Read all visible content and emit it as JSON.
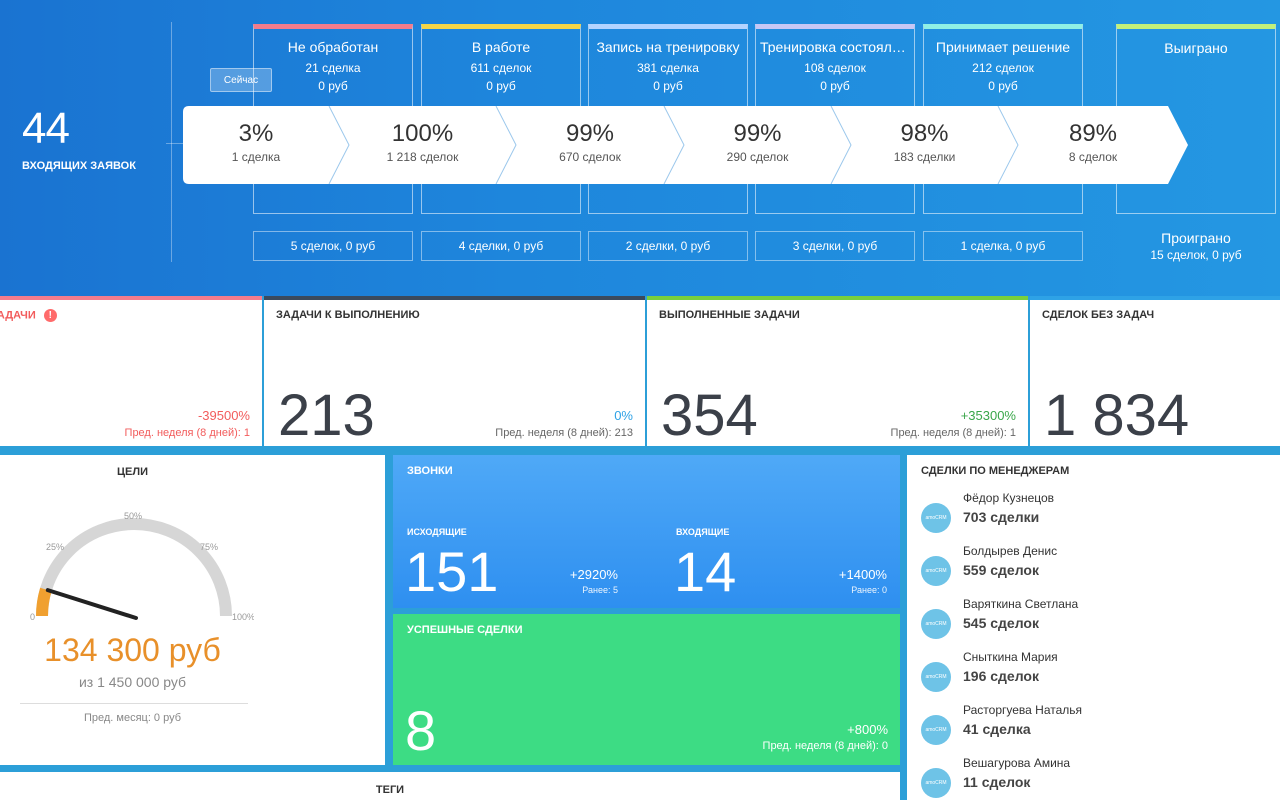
{
  "pipeline": {
    "inbox_count": "44",
    "inbox_label": "ВХОДЯЩИХ ЗАЯВОК",
    "now_label": "Сейчас",
    "stages": [
      {
        "name": "Не обработан",
        "count": "21 сделка",
        "sum": "0 руб",
        "pct": "3%",
        "deals": "1 сделка",
        "footer": "5 сделок, 0 руб",
        "color": "#f37c8c"
      },
      {
        "name": "В работе",
        "count": "611 сделок",
        "sum": "0 руб",
        "pct": "100%",
        "deals": "1 218 сделок",
        "footer": "4 сделки, 0 руб",
        "color": "#f5d547"
      },
      {
        "name": "Запись на тренировку",
        "count": "381 сделка",
        "sum": "0 руб",
        "pct": "99%",
        "deals": "670 сделок",
        "footer": "2 сделки, 0 руб",
        "color": "#b3d3ff"
      },
      {
        "name": "Тренировка состоялась",
        "count": "108 сделок",
        "sum": "0 руб",
        "pct": "99%",
        "deals": "290 сделок",
        "footer": "3 сделки, 0 руб",
        "color": "#c6c7f5"
      },
      {
        "name": "Принимает решение",
        "count": "212 сделок",
        "sum": "0 руб",
        "pct": "98%",
        "deals": "183 сделки",
        "footer": "1 сделка, 0 руб",
        "color": "#8ff0e5"
      }
    ],
    "won": {
      "name": "Выиграно",
      "pct": "89%",
      "deals": "8 сделок",
      "color": "#c2f07a"
    },
    "lost": {
      "name": "Проиграно",
      "sub": "15 сделок, 0 руб"
    }
  },
  "stats": [
    {
      "title": "ЗАДАЧИ",
      "value": "",
      "change": "-39500%",
      "prev": "Пред. неделя (8 дней): 1",
      "color": "#f37c8c",
      "change_color": "#f25c5c"
    },
    {
      "title": "ЗАДАЧИ К ВЫПОЛНЕНИЮ",
      "value": "213",
      "change": "0%",
      "prev": "Пред. неделя (8 дней): 213",
      "color": "#3b4a5d",
      "change_color": "#2ea2e6"
    },
    {
      "title": "ВЫПОЛНЕННЫЕ ЗАДАЧИ",
      "value": "354",
      "change": "+35300%",
      "prev": "Пред. неделя (8 дней): 1",
      "color": "#78cf3d",
      "change_color": "#3aa64a"
    },
    {
      "title": "СДЕЛОК БЕЗ ЗАДАЧ",
      "value": "1 834",
      "change": "",
      "prev": "",
      "color": "#2ea2e6",
      "change_color": "#333"
    }
  ],
  "goals": {
    "title": "ЦЕЛИ",
    "value": "134 300 руб",
    "of": "из 1 450 000 руб",
    "prev": "Пред. месяц: 0 руб",
    "gauge_labels": [
      "0",
      "25%",
      "50%",
      "75%",
      "100%"
    ],
    "gauge_fraction": 0.093
  },
  "calls": {
    "title": "ЗВОНКИ",
    "outgoing_label": "ИСХОДЯЩИЕ",
    "outgoing": "151",
    "outgoing_change": "+2920%",
    "outgoing_prev": "Ранее: 5",
    "incoming_label": "ВХОДЯЩИЕ",
    "incoming": "14",
    "incoming_change": "+1400%",
    "incoming_prev": "Ранее: 0"
  },
  "deals": {
    "title": "УСПЕШНЫЕ СДЕЛКИ",
    "value": "8",
    "change": "+800%",
    "prev": "Пред. неделя (8 дней): 0"
  },
  "managers": {
    "title": "СДЕЛКИ ПО МЕНЕДЖЕРАМ",
    "list": [
      {
        "name": "Фёдор Кузнецов",
        "value": "703 сделки"
      },
      {
        "name": "Болдырев Денис",
        "value": "559 сделок"
      },
      {
        "name": "Варяткина Светлана",
        "value": "545 сделок"
      },
      {
        "name": "Сныткина Мария",
        "value": "196 сделок"
      },
      {
        "name": "Расторгуева Наталья",
        "value": "41 сделка"
      },
      {
        "name": "Вешагурова Амина",
        "value": "11 сделок"
      }
    ],
    "avatar_text": "amoCRM"
  },
  "tags": {
    "title": "ТЕГИ"
  }
}
